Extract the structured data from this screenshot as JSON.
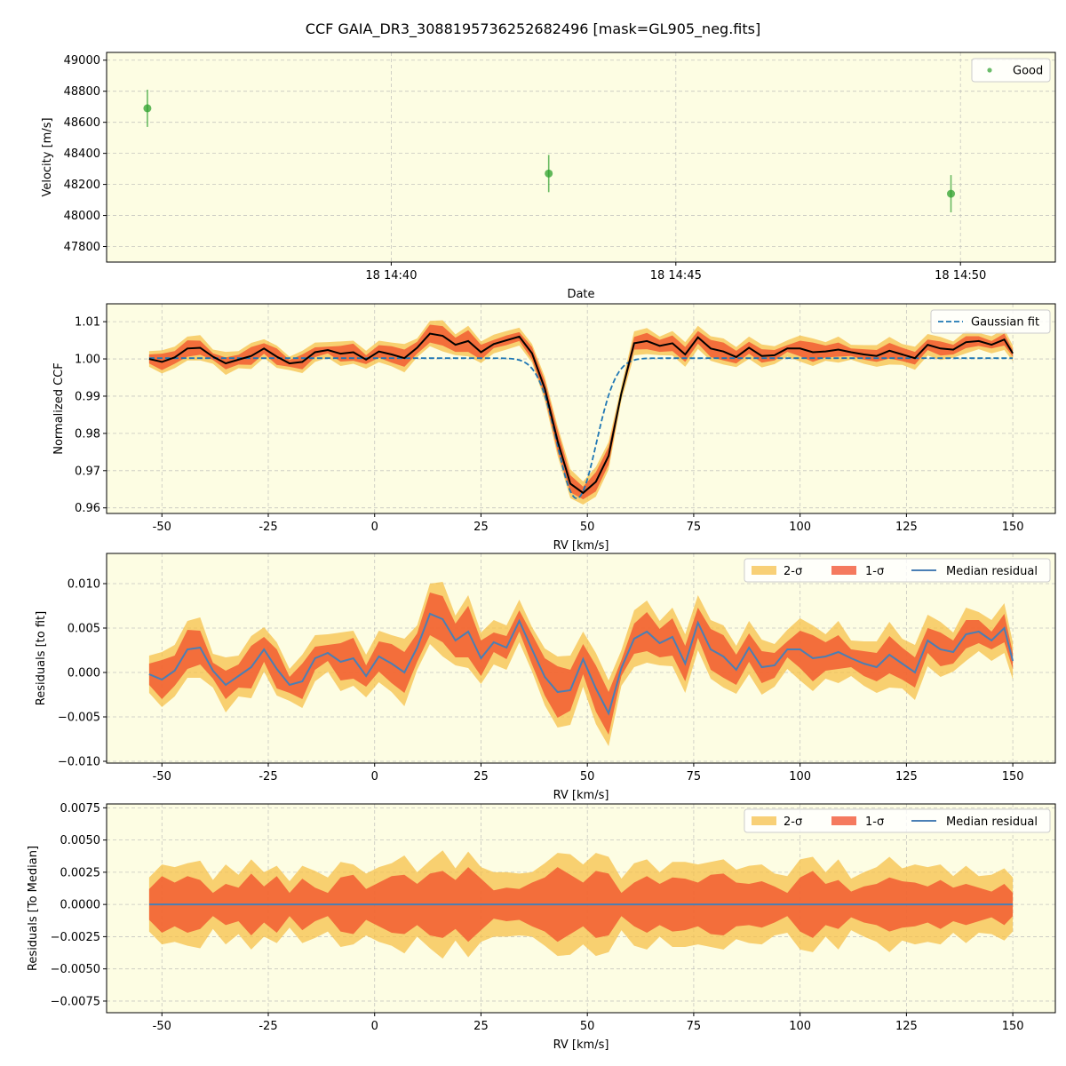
{
  "figure": {
    "title": "CCF GAIA_DR3_3088195736252682496 [mask=GL905_neg.fits]",
    "background_color": "#fdfde3",
    "colors": {
      "good": "#2ca02c",
      "gaussian": "#1f77b4",
      "ccf": "#000000",
      "sigma2": "#f5c04a",
      "sigma1": "#f24d2a",
      "residual": "#4a7fb5",
      "grid": "#b0b0b0"
    }
  },
  "chart_data": [
    {
      "type": "scatter",
      "id": "velocity",
      "xlabel": "Date",
      "ylabel": "Velocity [m/s]",
      "xlim": [
        "14:35:00",
        "14:51:40"
      ],
      "ylim": [
        47700,
        49050
      ],
      "xticks": [
        "18 14:40",
        "18 14:45",
        "18 14:50"
      ],
      "yticks": [
        47800,
        48000,
        48200,
        48400,
        48600,
        48800,
        49000
      ],
      "grid": true,
      "legend": {
        "position": "top-right",
        "entries": [
          "Good"
        ]
      },
      "series": [
        {
          "name": "Good",
          "x": [
            "14:35:43",
            "14:42:46",
            "14:49:50"
          ],
          "y": [
            48690,
            48270,
            48140
          ],
          "yerr": [
            120,
            120,
            120
          ]
        }
      ]
    },
    {
      "type": "line",
      "id": "ccf",
      "xlabel": "RV [km/s]",
      "ylabel": "Normalized CCF",
      "xlim": [
        -63,
        160
      ],
      "ylim": [
        0.9585,
        1.0148
      ],
      "xticks": [
        -50,
        -25,
        0,
        25,
        50,
        75,
        100,
        125,
        150
      ],
      "yticks": [
        0.96,
        0.97,
        0.98,
        0.99,
        1.0,
        1.01
      ],
      "yticklabels": [
        "0.96",
        "0.97",
        "0.98",
        "0.99",
        "1.00",
        "1.01"
      ],
      "grid": true,
      "legend": {
        "position": "top-right",
        "entries": [
          "Gaussian fit"
        ]
      },
      "gaussian": {
        "name": "Gaussian fit",
        "baseline": 1.0002,
        "depth": 0.0377,
        "center": 47.5,
        "sigma": 4.6
      },
      "rv": [
        -53,
        -50,
        -47,
        -44,
        -41,
        -38,
        -35,
        -32,
        -29,
        -26,
        -23,
        -20,
        -17,
        -14,
        -11,
        -8,
        -5,
        -2,
        1,
        4,
        7,
        10,
        13,
        16,
        19,
        22,
        25,
        28,
        31,
        34,
        37,
        40,
        43,
        46,
        49,
        52,
        55,
        58,
        61,
        64,
        67,
        70,
        73,
        76,
        79,
        82,
        85,
        88,
        91,
        94,
        97,
        100,
        103,
        106,
        109,
        112,
        115,
        118,
        121,
        124,
        127,
        130,
        133,
        136,
        139,
        142,
        145,
        148,
        150
      ],
      "ccf_median": [
        1.0,
        0.9992,
        1.0004,
        1.0028,
        1.003,
        1.0006,
        0.9988,
        0.9998,
        1.0008,
        1.0028,
        1.0006,
        0.9988,
        0.9992,
        1.0018,
        1.0024,
        1.0014,
        1.0018,
        0.9998,
        1.002,
        1.0012,
        1.0002,
        1.003,
        1.0068,
        1.0062,
        1.0038,
        1.0048,
        1.0018,
        1.004,
        1.005,
        1.006,
        1.0015,
        0.992,
        0.978,
        0.9665,
        0.964,
        0.967,
        0.974,
        0.9908,
        1.0042,
        1.0048,
        1.0035,
        1.0042,
        1.0012,
        1.0058,
        1.0028,
        1.002,
        1.0005,
        1.003,
        1.0008,
        1.001,
        1.0028,
        1.0028,
        1.0018,
        1.002,
        1.0025,
        1.0018,
        1.0012,
        1.0008,
        1.0022,
        1.0012,
        1.0002,
        1.0038,
        1.0028,
        1.0025,
        1.0045,
        1.0048,
        1.0038,
        1.0052,
        1.0015
      ],
      "residual_median": [
        -0.0002,
        -0.0008,
        0.0002,
        0.0026,
        0.0028,
        0.0002,
        -0.0014,
        -0.0004,
        0.0006,
        0.0026,
        0.0004,
        -0.0014,
        -0.001,
        0.0016,
        0.0022,
        0.0012,
        0.0016,
        -0.0004,
        0.0018,
        0.001,
        0.0,
        0.0028,
        0.0066,
        0.006,
        0.0036,
        0.0046,
        0.0016,
        0.0034,
        0.0028,
        0.0058,
        0.0026,
        -0.0005,
        -0.0022,
        -0.002,
        0.0015,
        -0.0018,
        -0.0046,
        0.0005,
        0.0038,
        0.0046,
        0.0033,
        0.004,
        0.001,
        0.0056,
        0.0026,
        0.0018,
        0.0003,
        0.0028,
        0.0006,
        0.0008,
        0.0026,
        0.0026,
        0.0016,
        0.0018,
        0.0023,
        0.0016,
        0.001,
        0.0006,
        0.002,
        0.001,
        0.0,
        0.0036,
        0.0026,
        0.0023,
        0.0043,
        0.0046,
        0.0036,
        0.005,
        0.0013
      ],
      "sigma1_halfwidth": [
        0.0012,
        0.0022,
        0.0017,
        0.0022,
        0.0019,
        0.0009,
        0.0016,
        0.0013,
        0.0024,
        0.0014,
        0.0022,
        0.0009,
        0.002,
        0.0013,
        0.0009,
        0.0021,
        0.0023,
        0.0012,
        0.0017,
        0.0022,
        0.0023,
        0.0016,
        0.0024,
        0.0026,
        0.0019,
        0.0029,
        0.002,
        0.0011,
        0.0013,
        0.0012,
        0.0017,
        0.0021,
        0.0029,
        0.0023,
        0.0017,
        0.0026,
        0.0024,
        0.0009,
        0.0017,
        0.0022,
        0.0016,
        0.0021,
        0.002,
        0.0017,
        0.0023,
        0.0024,
        0.0017,
        0.0016,
        0.0018,
        0.0014,
        0.0009,
        0.0021,
        0.0026,
        0.0016,
        0.0019,
        0.001,
        0.0014,
        0.0016,
        0.0021,
        0.0018,
        0.0017,
        0.0014,
        0.0019,
        0.0013,
        0.0016,
        0.0013,
        0.001,
        0.0016,
        0.0009
      ],
      "sigma2_halfwidth": [
        0.0021,
        0.0031,
        0.0029,
        0.0032,
        0.0034,
        0.0019,
        0.0031,
        0.0023,
        0.0035,
        0.0025,
        0.003,
        0.0018,
        0.003,
        0.0026,
        0.0021,
        0.0033,
        0.0031,
        0.0024,
        0.0029,
        0.0032,
        0.0038,
        0.0025,
        0.0034,
        0.0042,
        0.0028,
        0.0041,
        0.0029,
        0.0025,
        0.0025,
        0.0024,
        0.0025,
        0.0032,
        0.004,
        0.0039,
        0.0031,
        0.004,
        0.0037,
        0.002,
        0.0032,
        0.0035,
        0.0025,
        0.0033,
        0.0033,
        0.0031,
        0.0033,
        0.0035,
        0.0027,
        0.003,
        0.0031,
        0.0024,
        0.0022,
        0.0035,
        0.0037,
        0.0025,
        0.0035,
        0.002,
        0.0025,
        0.0029,
        0.0037,
        0.0028,
        0.0031,
        0.0029,
        0.0031,
        0.0022,
        0.003,
        0.0022,
        0.0023,
        0.0028,
        0.0021
      ]
    },
    {
      "type": "area",
      "id": "resid_fit",
      "xlabel": "RV [km/s]",
      "ylabel": "Residuals [to fit]",
      "xlim": [
        -63,
        160
      ],
      "ylim": [
        -0.0102,
        0.0134
      ],
      "xticks": [
        -50,
        -25,
        0,
        25,
        50,
        75,
        100,
        125,
        150
      ],
      "yticks": [
        -0.01,
        -0.005,
        0.0,
        0.005,
        0.01
      ],
      "yticklabels": [
        "−0.010",
        "−0.005",
        "0.000",
        "0.005",
        "0.010"
      ],
      "grid": true,
      "legend": {
        "position": "top-right",
        "entries": [
          "2-σ",
          "1-σ",
          "Median residual"
        ]
      }
    },
    {
      "type": "area",
      "id": "resid_median",
      "xlabel": "RV [km/s]",
      "ylabel": "Residuals [To Median]",
      "xlim": [
        -63,
        160
      ],
      "ylim": [
        -0.0084,
        0.0078
      ],
      "xticks": [
        -50,
        -25,
        0,
        25,
        50,
        75,
        100,
        125,
        150
      ],
      "yticks": [
        -0.0075,
        -0.005,
        -0.0025,
        0.0,
        0.0025,
        0.005,
        0.0075
      ],
      "yticklabels": [
        "−0.0075",
        "−0.0050",
        "−0.0025",
        "0.0000",
        "0.0025",
        "0.0050",
        "0.0075"
      ],
      "grid": true,
      "legend": {
        "position": "top-right",
        "entries": [
          "2-σ",
          "1-σ",
          "Median residual"
        ]
      }
    }
  ]
}
